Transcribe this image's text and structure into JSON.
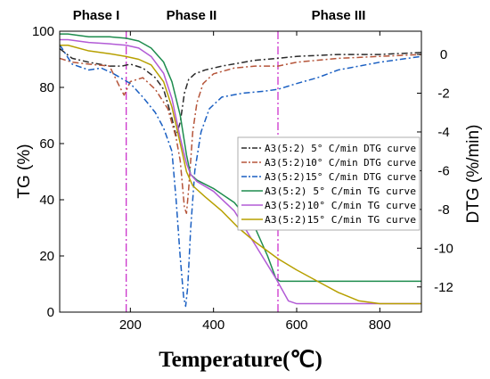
{
  "chart_data": {
    "type": "line",
    "xlabel": "Temperature(℃)",
    "ylabel_left": "TG  (%)",
    "ylabel_right": "DTG  (%/min)",
    "xlim": [
      30,
      900
    ],
    "ylim_left": [
      0,
      100
    ],
    "ylim_right": [
      -13.3,
      1.2
    ],
    "x_ticks": [
      200,
      400,
      600,
      800
    ],
    "y_ticks_left": [
      0,
      20,
      40,
      60,
      80,
      100
    ],
    "y_ticks_right": [
      0,
      -2,
      -4,
      -6,
      -8,
      -10,
      -12
    ],
    "phases": [
      {
        "label": "Phase I"
      },
      {
        "label": "Phase II"
      },
      {
        "label": "Phase III"
      }
    ],
    "phase_boundaries": [
      190,
      555
    ],
    "legend_position": "center-right",
    "series": [
      {
        "name": "A3(5:2) 5° C/min DTG curve",
        "axis": "right",
        "color": "#2b2b2b",
        "dash": "dashdot",
        "points": [
          [
            30,
            0.3
          ],
          [
            60,
            -0.2
          ],
          [
            100,
            -0.4
          ],
          [
            150,
            -0.6
          ],
          [
            180,
            -0.6
          ],
          [
            200,
            -0.5
          ],
          [
            230,
            -0.7
          ],
          [
            260,
            -1.2
          ],
          [
            280,
            -1.8
          ],
          [
            300,
            -3.3
          ],
          [
            310,
            -4.2
          ],
          [
            320,
            -3.5
          ],
          [
            330,
            -2.0
          ],
          [
            340,
            -1.3
          ],
          [
            355,
            -1.0
          ],
          [
            380,
            -0.8
          ],
          [
            420,
            -0.6
          ],
          [
            500,
            -0.3
          ],
          [
            555,
            -0.2
          ],
          [
            600,
            -0.1
          ],
          [
            700,
            0.0
          ],
          [
            800,
            0.0
          ],
          [
            900,
            0.1
          ]
        ]
      },
      {
        "name": "A3(5:2)10° C/min DTG curve",
        "axis": "right",
        "color": "#b5553a",
        "dash": "dashdot",
        "points": [
          [
            30,
            -0.2
          ],
          [
            60,
            -0.4
          ],
          [
            100,
            -0.5
          ],
          [
            150,
            -0.6
          ],
          [
            175,
            -1.7
          ],
          [
            185,
            -2.1
          ],
          [
            200,
            -1.4
          ],
          [
            230,
            -1.2
          ],
          [
            260,
            -1.8
          ],
          [
            290,
            -2.8
          ],
          [
            310,
            -4.3
          ],
          [
            320,
            -5.5
          ],
          [
            330,
            -7.9
          ],
          [
            335,
            -8.2
          ],
          [
            340,
            -7.0
          ],
          [
            350,
            -4.0
          ],
          [
            360,
            -2.5
          ],
          [
            375,
            -1.5
          ],
          [
            400,
            -1.0
          ],
          [
            450,
            -0.7
          ],
          [
            500,
            -0.6
          ],
          [
            555,
            -0.6
          ],
          [
            600,
            -0.4
          ],
          [
            700,
            -0.2
          ],
          [
            800,
            -0.1
          ],
          [
            900,
            0.0
          ]
        ]
      },
      {
        "name": "A3(5:2)15° C/min DTG curve",
        "axis": "right",
        "color": "#1a5fc2",
        "dash": "dashdot",
        "points": [
          [
            30,
            0.5
          ],
          [
            60,
            -0.5
          ],
          [
            100,
            -0.8
          ],
          [
            130,
            -0.7
          ],
          [
            160,
            -1.0
          ],
          [
            200,
            -1.5
          ],
          [
            230,
            -2.2
          ],
          [
            260,
            -3.0
          ],
          [
            280,
            -3.8
          ],
          [
            300,
            -5.0
          ],
          [
            310,
            -7.5
          ],
          [
            320,
            -10.5
          ],
          [
            328,
            -12.5
          ],
          [
            333,
            -13.0
          ],
          [
            338,
            -12.0
          ],
          [
            345,
            -9.0
          ],
          [
            355,
            -6.0
          ],
          [
            370,
            -4.0
          ],
          [
            390,
            -2.8
          ],
          [
            420,
            -2.2
          ],
          [
            470,
            -2.0
          ],
          [
            520,
            -1.9
          ],
          [
            555,
            -1.8
          ],
          [
            600,
            -1.5
          ],
          [
            650,
            -1.2
          ],
          [
            700,
            -0.8
          ],
          [
            800,
            -0.4
          ],
          [
            900,
            -0.1
          ]
        ]
      },
      {
        "name": "A3(5:2) 5° C/min TG curve",
        "axis": "left",
        "color": "#1e8c4e",
        "dash": "solid",
        "points": [
          [
            30,
            99
          ],
          [
            50,
            99
          ],
          [
            100,
            98
          ],
          [
            150,
            98
          ],
          [
            190,
            97.5
          ],
          [
            220,
            96.5
          ],
          [
            250,
            94
          ],
          [
            280,
            89
          ],
          [
            300,
            82
          ],
          [
            320,
            70
          ],
          [
            335,
            56
          ],
          [
            345,
            49
          ],
          [
            360,
            47
          ],
          [
            400,
            44
          ],
          [
            450,
            39
          ],
          [
            500,
            30
          ],
          [
            530,
            20
          ],
          [
            550,
            12
          ],
          [
            560,
            11
          ],
          [
            600,
            11
          ],
          [
            700,
            11
          ],
          [
            800,
            11
          ],
          [
            900,
            11
          ]
        ]
      },
      {
        "name": "A3(5:2)10° C/min TG curve",
        "axis": "left",
        "color": "#b25bd6",
        "dash": "solid",
        "points": [
          [
            30,
            97
          ],
          [
            50,
            97
          ],
          [
            100,
            96
          ],
          [
            150,
            95.5
          ],
          [
            190,
            95
          ],
          [
            220,
            94
          ],
          [
            250,
            91
          ],
          [
            280,
            85
          ],
          [
            300,
            76
          ],
          [
            320,
            62
          ],
          [
            335,
            53
          ],
          [
            345,
            49
          ],
          [
            360,
            46.5
          ],
          [
            400,
            43
          ],
          [
            450,
            36
          ],
          [
            500,
            24
          ],
          [
            550,
            12
          ],
          [
            580,
            4
          ],
          [
            600,
            3
          ],
          [
            700,
            3
          ],
          [
            800,
            3
          ],
          [
            900,
            3
          ]
        ]
      },
      {
        "name": "A3(5:2)15° C/min TG curve",
        "axis": "left",
        "color": "#b7a000",
        "dash": "solid",
        "points": [
          [
            30,
            95
          ],
          [
            50,
            95
          ],
          [
            100,
            93
          ],
          [
            150,
            92
          ],
          [
            190,
            91
          ],
          [
            220,
            90
          ],
          [
            250,
            88
          ],
          [
            280,
            82
          ],
          [
            300,
            73
          ],
          [
            320,
            60
          ],
          [
            335,
            50
          ],
          [
            350,
            45
          ],
          [
            380,
            41
          ],
          [
            420,
            36
          ],
          [
            460,
            30
          ],
          [
            500,
            25
          ],
          [
            555,
            19
          ],
          [
            600,
            15
          ],
          [
            650,
            11
          ],
          [
            700,
            7
          ],
          [
            750,
            4
          ],
          [
            800,
            3
          ],
          [
            900,
            3
          ]
        ]
      }
    ]
  }
}
